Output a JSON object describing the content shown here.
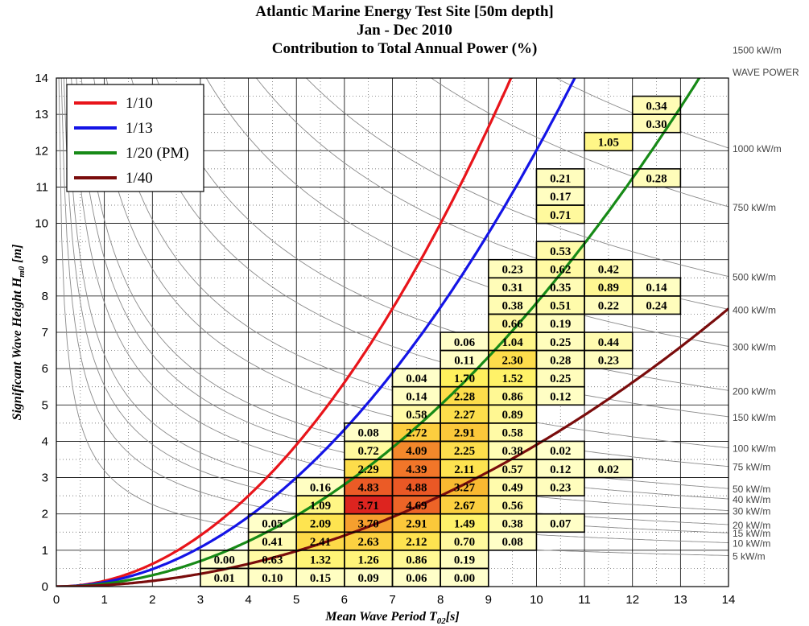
{
  "titles": [
    "Atlantic Marine Energy Test Site [50m depth]",
    "Jan - Dec 2010",
    "Contribution to Total Annual Power (%)"
  ],
  "chart_data": {
    "type": "heatmap",
    "title": "Atlantic Marine Energy Test Site [50m depth]",
    "subtitle": [
      "Jan - Dec 2010",
      "Contribution to Total Annual Power (%)"
    ],
    "xlabel_main": "Mean Wave Period T",
    "xlabel_sub": "02",
    "xlabel_unit": "[s]",
    "ylabel_main": "Significant Wave Height H",
    "ylabel_sub": "m0",
    "ylabel_unit": " [m]",
    "xlim": [
      0,
      14
    ],
    "ylim": [
      0,
      14
    ],
    "xticks": [
      0,
      1,
      2,
      3,
      4,
      5,
      6,
      7,
      8,
      9,
      10,
      11,
      12,
      13,
      14
    ],
    "yticks": [
      0,
      1,
      2,
      3,
      4,
      5,
      6,
      7,
      8,
      9,
      10,
      11,
      12,
      13,
      14
    ],
    "grid": true,
    "legend_position": "top-left",
    "steepness_curves": [
      {
        "name": "1/10",
        "steepness": 10,
        "color": "#e8141a"
      },
      {
        "name": "1/13",
        "steepness": 13,
        "color": "#1414e6"
      },
      {
        "name": "1/20 (PM)",
        "steepness": 20,
        "color": "#178a17"
      },
      {
        "name": "1/40",
        "steepness": 40,
        "color": "#7a0c0c"
      }
    ],
    "wave_power_title": "WAVE POWER",
    "power_contours": [
      {
        "label": "5 kW/m",
        "value": 5
      },
      {
        "label": "10 kW/m",
        "value": 10
      },
      {
        "label": "15 kW/m",
        "value": 15
      },
      {
        "label": "20 kW/m",
        "value": 20
      },
      {
        "label": "30 kW/m",
        "value": 30
      },
      {
        "label": "40 kW/m",
        "value": 40
      },
      {
        "label": "50 kW/m",
        "value": 50
      },
      {
        "label": "75 kW/m",
        "value": 75
      },
      {
        "label": "100 kW/m",
        "value": 100
      },
      {
        "label": "150 kW/m",
        "value": 150
      },
      {
        "label": "200 kW/m",
        "value": 200
      },
      {
        "label": "300 kW/m",
        "value": 300
      },
      {
        "label": "400 kW/m",
        "value": 400
      },
      {
        "label": "500 kW/m",
        "value": 500
      },
      {
        "label": "750 kW/m",
        "value": 750
      },
      {
        "label": "1000 kW/m",
        "value": 1000
      },
      {
        "label": "1500 kW/m",
        "value": 1500
      }
    ],
    "cells": [
      {
        "t": 3,
        "h": 0.5,
        "v": 0.01
      },
      {
        "t": 4,
        "h": 0.5,
        "v": 0.1
      },
      {
        "t": 5,
        "h": 0.5,
        "v": 0.15
      },
      {
        "t": 6,
        "h": 0.5,
        "v": 0.09
      },
      {
        "t": 7,
        "h": 0.5,
        "v": 0.06
      },
      {
        "t": 8,
        "h": 0.5,
        "v": 0.0
      },
      {
        "t": 3,
        "h": 1.0,
        "v": 0.0
      },
      {
        "t": 4,
        "h": 1.0,
        "v": 0.63
      },
      {
        "t": 5,
        "h": 1.0,
        "v": 1.32
      },
      {
        "t": 6,
        "h": 1.0,
        "v": 1.26
      },
      {
        "t": 7,
        "h": 1.0,
        "v": 0.86
      },
      {
        "t": 8,
        "h": 1.0,
        "v": 0.19
      },
      {
        "t": 4,
        "h": 1.5,
        "v": 0.41
      },
      {
        "t": 5,
        "h": 1.5,
        "v": 2.41
      },
      {
        "t": 6,
        "h": 1.5,
        "v": 2.63
      },
      {
        "t": 7,
        "h": 1.5,
        "v": 2.12
      },
      {
        "t": 8,
        "h": 1.5,
        "v": 0.7
      },
      {
        "t": 9,
        "h": 1.5,
        "v": 0.08
      },
      {
        "t": 4,
        "h": 2.0,
        "v": 0.05
      },
      {
        "t": 5,
        "h": 2.0,
        "v": 2.09
      },
      {
        "t": 6,
        "h": 2.0,
        "v": 3.7
      },
      {
        "t": 7,
        "h": 2.0,
        "v": 2.91
      },
      {
        "t": 8,
        "h": 2.0,
        "v": 1.49
      },
      {
        "t": 9,
        "h": 2.0,
        "v": 0.38
      },
      {
        "t": 10,
        "h": 2.0,
        "v": 0.07
      },
      {
        "t": 5,
        "h": 2.5,
        "v": 1.09
      },
      {
        "t": 6,
        "h": 2.5,
        "v": 5.71
      },
      {
        "t": 7,
        "h": 2.5,
        "v": 4.69
      },
      {
        "t": 8,
        "h": 2.5,
        "v": 2.67
      },
      {
        "t": 9,
        "h": 2.5,
        "v": 0.56
      },
      {
        "t": 5,
        "h": 3.0,
        "v": 0.16
      },
      {
        "t": 6,
        "h": 3.0,
        "v": 4.83
      },
      {
        "t": 7,
        "h": 3.0,
        "v": 4.88
      },
      {
        "t": 8,
        "h": 3.0,
        "v": 3.27
      },
      {
        "t": 9,
        "h": 3.0,
        "v": 0.49
      },
      {
        "t": 10,
        "h": 3.0,
        "v": 0.23
      },
      {
        "t": 6,
        "h": 3.5,
        "v": 2.29
      },
      {
        "t": 7,
        "h": 3.5,
        "v": 4.39
      },
      {
        "t": 8,
        "h": 3.5,
        "v": 2.11
      },
      {
        "t": 9,
        "h": 3.5,
        "v": 0.57
      },
      {
        "t": 10,
        "h": 3.5,
        "v": 0.12
      },
      {
        "t": 11,
        "h": 3.5,
        "v": 0.02
      },
      {
        "t": 6,
        "h": 4.0,
        "v": 0.72
      },
      {
        "t": 7,
        "h": 4.0,
        "v": 4.09
      },
      {
        "t": 8,
        "h": 4.0,
        "v": 2.25
      },
      {
        "t": 9,
        "h": 4.0,
        "v": 0.38
      },
      {
        "t": 10,
        "h": 4.0,
        "v": 0.02
      },
      {
        "t": 6,
        "h": 4.5,
        "v": 0.08
      },
      {
        "t": 7,
        "h": 4.5,
        "v": 2.72
      },
      {
        "t": 8,
        "h": 4.5,
        "v": 2.91
      },
      {
        "t": 9,
        "h": 4.5,
        "v": 0.58
      },
      {
        "t": 7,
        "h": 5.0,
        "v": 0.58
      },
      {
        "t": 8,
        "h": 5.0,
        "v": 2.27
      },
      {
        "t": 9,
        "h": 5.0,
        "v": 0.89
      },
      {
        "t": 7,
        "h": 5.5,
        "v": 0.14
      },
      {
        "t": 8,
        "h": 5.5,
        "v": 2.28
      },
      {
        "t": 9,
        "h": 5.5,
        "v": 0.86
      },
      {
        "t": 10,
        "h": 5.5,
        "v": 0.12
      },
      {
        "t": 7,
        "h": 6.0,
        "v": 0.04
      },
      {
        "t": 8,
        "h": 6.0,
        "v": 1.7
      },
      {
        "t": 9,
        "h": 6.0,
        "v": 1.52
      },
      {
        "t": 10,
        "h": 6.0,
        "v": 0.25
      },
      {
        "t": 8,
        "h": 6.5,
        "v": 0.11
      },
      {
        "t": 9,
        "h": 6.5,
        "v": 2.3
      },
      {
        "t": 10,
        "h": 6.5,
        "v": 0.28
      },
      {
        "t": 11,
        "h": 6.5,
        "v": 0.23
      },
      {
        "t": 8,
        "h": 7.0,
        "v": 0.06
      },
      {
        "t": 9,
        "h": 7.0,
        "v": 1.04
      },
      {
        "t": 10,
        "h": 7.0,
        "v": 0.25
      },
      {
        "t": 11,
        "h": 7.0,
        "v": 0.44
      },
      {
        "t": 9,
        "h": 7.5,
        "v": 0.66
      },
      {
        "t": 10,
        "h": 7.5,
        "v": 0.19
      },
      {
        "t": 9,
        "h": 8.0,
        "v": 0.38
      },
      {
        "t": 10,
        "h": 8.0,
        "v": 0.51
      },
      {
        "t": 11,
        "h": 8.0,
        "v": 0.22
      },
      {
        "t": 12,
        "h": 8.0,
        "v": 0.24
      },
      {
        "t": 9,
        "h": 8.5,
        "v": 0.31
      },
      {
        "t": 10,
        "h": 8.5,
        "v": 0.35
      },
      {
        "t": 11,
        "h": 8.5,
        "v": 0.89
      },
      {
        "t": 12,
        "h": 8.5,
        "v": 0.14
      },
      {
        "t": 9,
        "h": 9.0,
        "v": 0.23
      },
      {
        "t": 10,
        "h": 9.0,
        "v": 0.62
      },
      {
        "t": 11,
        "h": 9.0,
        "v": 0.42
      },
      {
        "t": 10,
        "h": 9.5,
        "v": 0.53
      },
      {
        "t": 10,
        "h": 10.5,
        "v": 0.71
      },
      {
        "t": 10,
        "h": 11.0,
        "v": 0.17
      },
      {
        "t": 10,
        "h": 11.5,
        "v": 0.21
      },
      {
        "t": 12,
        "h": 11.5,
        "v": 0.28
      },
      {
        "t": 11,
        "h": 12.5,
        "v": 1.05
      },
      {
        "t": 12,
        "h": 13.0,
        "v": 0.3
      },
      {
        "t": 12,
        "h": 13.5,
        "v": 0.34
      }
    ]
  }
}
